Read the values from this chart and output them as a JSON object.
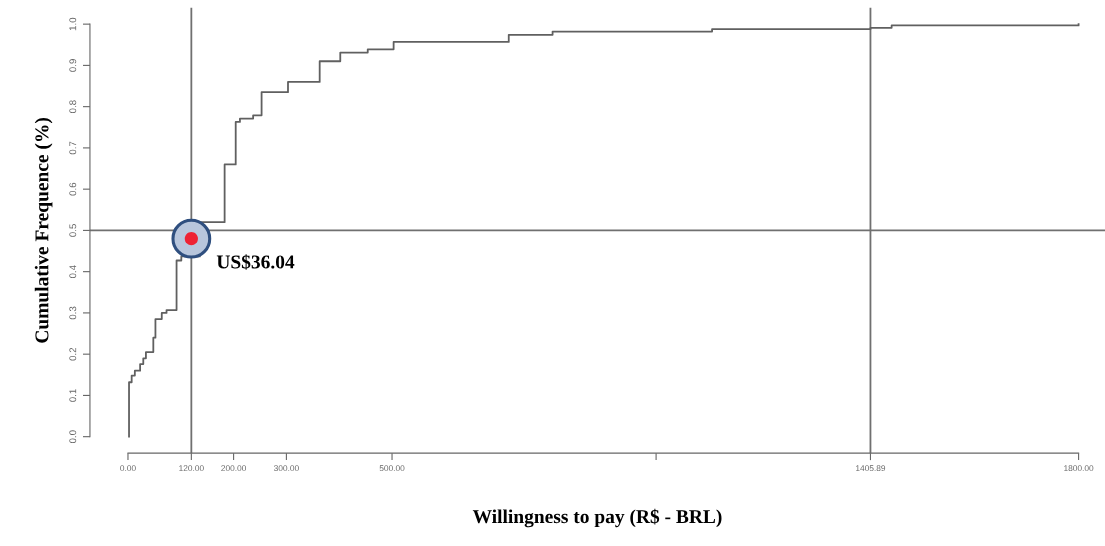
{
  "chart_data": {
    "type": "step",
    "xlabel": "Willingness to pay (R$ - BRL)",
    "ylabel": "Cumulative Frequence (%)",
    "series": [
      {
        "color": "#606060",
        "x": [
          2,
          2,
          7,
          13,
          23,
          29,
          34,
          48,
          52,
          64,
          73,
          92,
          101,
          136,
          183,
          204,
          212,
          237,
          253,
          303,
          363,
          402,
          454,
          503,
          721,
          804,
          1106,
          1406,
          1446,
          1800
        ],
        "values": [
          0.0,
          0.132,
          0.148,
          0.16,
          0.176,
          0.19,
          0.205,
          0.24,
          0.285,
          0.3,
          0.307,
          0.427,
          0.437,
          0.52,
          0.66,
          0.763,
          0.771,
          0.779,
          0.835,
          0.86,
          0.91,
          0.931,
          0.939,
          0.957,
          0.974,
          0.982,
          0.988,
          0.991,
          0.997,
          1.0
        ]
      }
    ],
    "xlim": [
      -72,
      1850
    ],
    "ylim": [
      -0.04,
      1.04
    ],
    "xticks": [
      {
        "value": 0,
        "label": "0.00"
      },
      {
        "value": 120,
        "label": "120.00"
      },
      {
        "value": 200,
        "label": "200.00"
      },
      {
        "value": 300,
        "label": "300.00"
      },
      {
        "value": 500,
        "label": "500.00"
      },
      {
        "value": 1000,
        "label": null
      },
      {
        "value": 1405.89,
        "label": "1405.89"
      },
      {
        "value": 1800,
        "label": "1800.00"
      }
    ],
    "yticks": [
      {
        "value": 0,
        "label": "0.0"
      },
      {
        "value": 0.1,
        "label": "0.1"
      },
      {
        "value": 0.2,
        "label": "0.2"
      },
      {
        "value": 0.3,
        "label": "0.3"
      },
      {
        "value": 0.4,
        "label": "0.4"
      },
      {
        "value": 0.5,
        "label": "0.5"
      },
      {
        "value": 0.6,
        "label": "0.6"
      },
      {
        "value": 0.7,
        "label": "0.7"
      },
      {
        "value": 0.8,
        "label": "0.8"
      },
      {
        "value": 0.9,
        "label": "0.9"
      },
      {
        "value": 1.0,
        "label": "1.0"
      }
    ],
    "ref_lines": [
      {
        "axis": "x",
        "value": 120,
        "label": null,
        "color": "#707070"
      },
      {
        "axis": "x",
        "value": 1405.89,
        "label": null,
        "color": "#707070"
      },
      {
        "axis": "y",
        "value": 0.5,
        "label": null,
        "color": "#707070"
      }
    ],
    "annotations": [
      {
        "text": "US$36.04",
        "x": 120,
        "y": 0.48
      }
    ],
    "grid": false
  }
}
